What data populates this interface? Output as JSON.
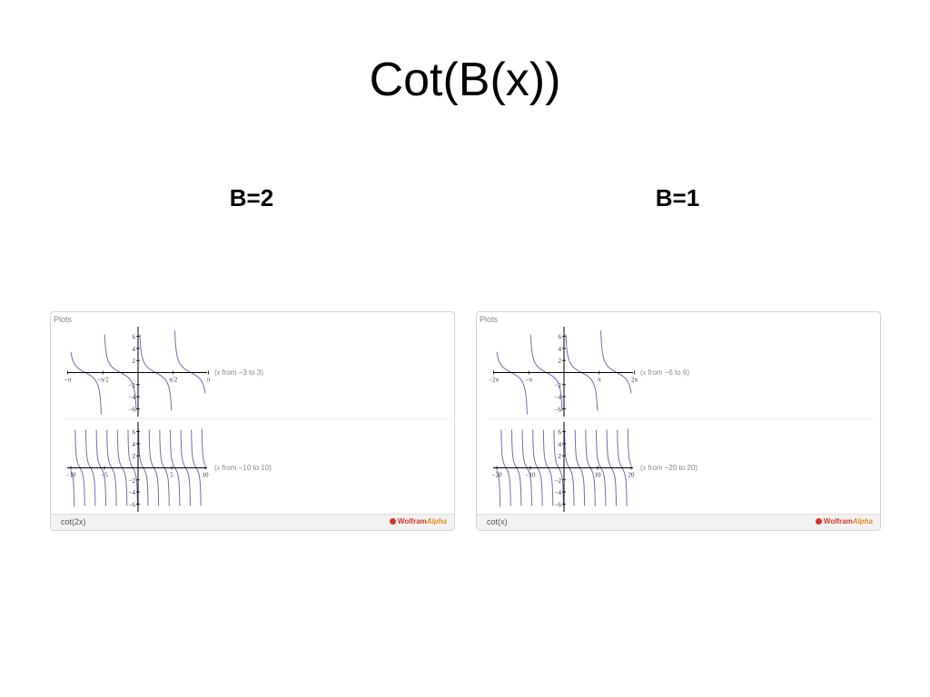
{
  "slide": {
    "title": "Cot(B(x))"
  },
  "columns": [
    {
      "label": "B=2"
    },
    {
      "label": "B=1"
    }
  ],
  "colors": {
    "curve": "#6f6fb3",
    "axis": "#000000",
    "panel_border": "#d4d4d4",
    "footer_bg": "#f2f2f2"
  },
  "panels": [
    {
      "header": "Plots",
      "query": "cot(2x)",
      "brand": {
        "name": "Wolfram",
        "suffix": "Alpha",
        "icon": "wolfram-spikey-icon"
      },
      "plots": [
        {
          "range_var": "x",
          "range_text": "from −3 to 3",
          "x_tick_labels": [
            "−π",
            "−π/2",
            "π/2",
            "π"
          ],
          "y_tick_labels": [
            "6",
            "4",
            "2",
            "−2",
            "−4",
            "−6"
          ]
        },
        {
          "range_var": "x",
          "range_text": "from −10 to 10",
          "x_tick_labels": [
            "−10",
            "−5",
            "5",
            "10"
          ],
          "y_tick_labels": [
            "6",
            "4",
            "2",
            "−2",
            "−4",
            "−6"
          ]
        }
      ]
    },
    {
      "header": "Plots",
      "query": "cot(x)",
      "brand": {
        "name": "Wolfram",
        "suffix": "Alpha",
        "icon": "wolfram-spikey-icon"
      },
      "plots": [
        {
          "range_var": "x",
          "range_text": "from −6 to 6",
          "x_tick_labels": [
            "−2π",
            "−π",
            "π",
            "2π"
          ],
          "y_tick_labels": [
            "6",
            "4",
            "2",
            "−2",
            "−4",
            "−6"
          ]
        },
        {
          "range_var": "x",
          "range_text": "from −20 to 20",
          "x_tick_labels": [
            "−20",
            "−10",
            "10",
            "20"
          ],
          "y_tick_labels": [
            "6",
            "4",
            "2",
            "−2",
            "−4",
            "−6"
          ]
        }
      ]
    }
  ],
  "chart_data": [
    {
      "type": "line",
      "function": "cot(2x)",
      "xlim": [
        -3,
        3
      ],
      "ylim": [
        -7,
        7
      ],
      "x_ticks": [
        -3.14159,
        -1.5708,
        1.5708,
        3.14159
      ],
      "y_ticks": [
        6,
        4,
        2,
        -2,
        -4,
        -6
      ],
      "series": [
        {
          "B": 2
        }
      ]
    },
    {
      "type": "line",
      "function": "cot(2x)",
      "xlim": [
        -10,
        10
      ],
      "ylim": [
        -7,
        7
      ],
      "x_ticks": [
        -10,
        -5,
        5,
        10
      ],
      "y_ticks": [
        6,
        4,
        2,
        -2,
        -4,
        -6
      ],
      "series": [
        {
          "B": 2
        }
      ]
    },
    {
      "type": "line",
      "function": "cot(x)",
      "xlim": [
        -6,
        6
      ],
      "ylim": [
        -7,
        7
      ],
      "x_ticks": [
        -6.28319,
        -3.14159,
        3.14159,
        6.28319
      ],
      "y_ticks": [
        6,
        4,
        2,
        -2,
        -4,
        -6
      ],
      "series": [
        {
          "B": 1
        }
      ]
    },
    {
      "type": "line",
      "function": "cot(x)",
      "xlim": [
        -20,
        20
      ],
      "ylim": [
        -7,
        7
      ],
      "x_ticks": [
        -20,
        -10,
        10,
        20
      ],
      "y_ticks": [
        6,
        4,
        2,
        -2,
        -4,
        -6
      ],
      "series": [
        {
          "B": 1
        }
      ]
    }
  ]
}
